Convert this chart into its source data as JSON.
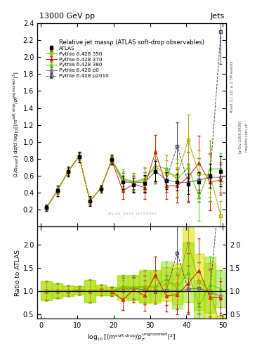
{
  "title": "13000 GeV pp",
  "title_right": "Jets",
  "plot_title": "Relative jet massρ (ATLAS soft-drop observables)",
  "watermark": "ATLAS_2019_I1772062",
  "rivet_label": "Rivet 3.1.10; ≥ 2.5M events",
  "arxiv_label": "[arXiv:1306.3436]",
  "inspire_label": "mcplots.cern.ch",
  "colors": {
    "ATLAS": "#000000",
    "350": "#aaaa00",
    "370": "#cc2200",
    "380": "#55cc00",
    "p0": "#777777",
    "p2010": "#444466"
  },
  "xlim": [
    -1,
    51
  ],
  "ylim_main": [
    0.0,
    2.4
  ],
  "ylim_ratio": [
    0.4,
    2.4
  ],
  "yticks_main": [
    0.2,
    0.4,
    0.6,
    0.8,
    1.0,
    1.2,
    1.4,
    1.6,
    1.8,
    2.0,
    2.2,
    2.4
  ],
  "yticks_ratio": [
    0.5,
    1.0,
    1.5,
    2.0
  ],
  "xticks": [
    0,
    10,
    20,
    30,
    40,
    50
  ],
  "atlas_x": [
    1.5,
    4.5,
    7.5,
    10.5,
    13.5,
    16.5,
    19.5,
    22.5,
    25.5,
    28.5,
    31.5,
    34.5,
    37.5,
    40.5,
    43.5,
    46.5,
    49.5
  ],
  "atlas_y": [
    0.22,
    0.42,
    0.65,
    0.82,
    0.3,
    0.44,
    0.79,
    0.52,
    0.49,
    0.51,
    0.65,
    0.54,
    0.52,
    0.5,
    0.52,
    0.6,
    0.65
  ],
  "atlas_yerr": [
    0.04,
    0.06,
    0.06,
    0.06,
    0.06,
    0.04,
    0.06,
    0.08,
    0.08,
    0.1,
    0.12,
    0.1,
    0.1,
    0.12,
    0.12,
    0.14,
    0.18
  ],
  "p350_y": [
    0.22,
    0.42,
    0.65,
    0.83,
    0.3,
    0.45,
    0.79,
    0.55,
    0.52,
    0.55,
    0.7,
    0.62,
    0.6,
    1.02,
    0.62,
    0.61,
    0.12
  ],
  "p350_yerr": [
    0.02,
    0.03,
    0.04,
    0.04,
    0.04,
    0.03,
    0.04,
    0.1,
    0.1,
    0.14,
    0.18,
    0.16,
    0.2,
    0.3,
    0.28,
    0.32,
    0.18
  ],
  "p370_y": [
    0.22,
    0.42,
    0.65,
    0.83,
    0.3,
    0.45,
    0.78,
    0.42,
    0.5,
    0.46,
    0.88,
    0.48,
    0.48,
    0.58,
    0.75,
    0.52,
    0.55
  ],
  "p370_yerr": [
    0.02,
    0.03,
    0.04,
    0.04,
    0.04,
    0.03,
    0.04,
    0.1,
    0.1,
    0.14,
    0.2,
    0.16,
    0.2,
    0.3,
    0.32,
    0.33,
    0.18
  ],
  "p380_y": [
    0.22,
    0.42,
    0.65,
    0.83,
    0.3,
    0.45,
    0.79,
    0.57,
    0.53,
    0.56,
    0.72,
    0.68,
    0.55,
    0.7,
    0.35,
    0.68,
    0.68
  ],
  "p380_yerr": [
    0.02,
    0.03,
    0.04,
    0.04,
    0.04,
    0.03,
    0.04,
    0.1,
    0.1,
    0.14,
    0.18,
    0.16,
    0.2,
    0.28,
    0.28,
    0.33,
    0.18
  ],
  "pp0_y": [
    0.22,
    0.42,
    0.65,
    0.83,
    0.3,
    0.45,
    0.79,
    0.52,
    0.52,
    0.52,
    0.65,
    0.55,
    0.52,
    0.52,
    0.55,
    0.58,
    0.58
  ],
  "pp0_yerr": [
    0.02,
    0.03,
    0.04,
    0.04,
    0.04,
    0.03,
    0.04,
    0.08,
    0.08,
    0.12,
    0.14,
    0.14,
    0.18,
    0.22,
    0.26,
    0.28,
    0.18
  ],
  "pp2010_y": [
    0.22,
    0.42,
    0.65,
    0.83,
    0.3,
    0.45,
    0.79,
    0.55,
    0.52,
    0.52,
    0.65,
    0.55,
    0.95,
    0.52,
    0.55,
    0.58,
    2.3
  ],
  "pp2010_yerr": [
    0.02,
    0.03,
    0.04,
    0.04,
    0.04,
    0.03,
    0.04,
    0.08,
    0.08,
    0.12,
    0.14,
    0.14,
    0.28,
    0.22,
    0.26,
    0.28,
    0.38
  ],
  "ratio_ylim": [
    0.4,
    2.4
  ],
  "ratio_yticks": [
    0.5,
    1.0,
    1.5,
    2.0
  ]
}
